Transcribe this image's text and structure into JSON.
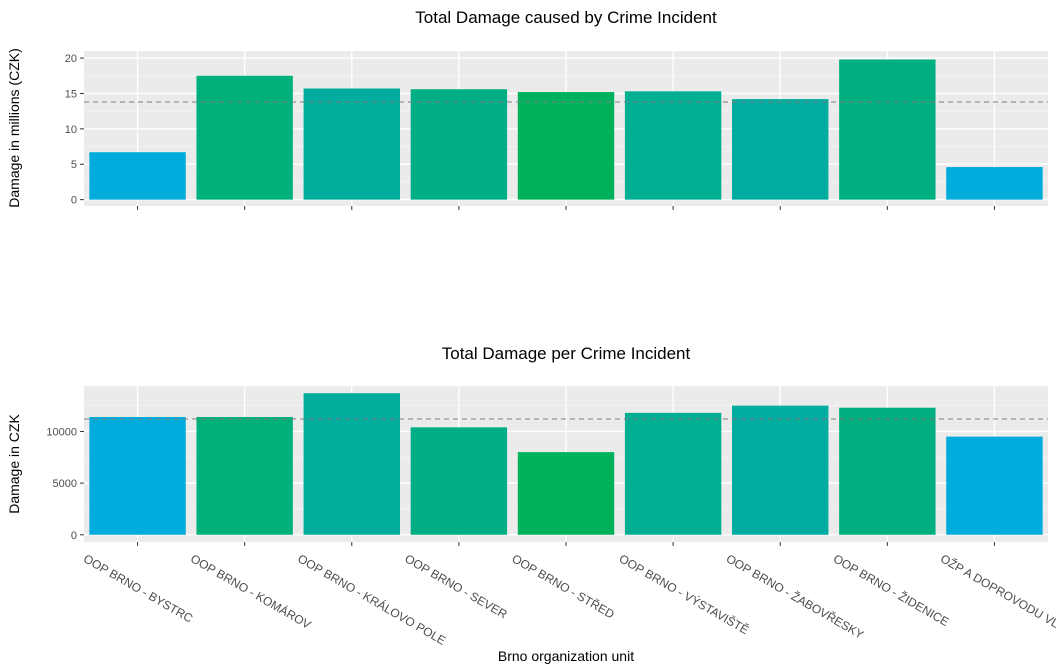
{
  "x_axis_title": "Brno organization unit",
  "chart_data": [
    {
      "type": "bar",
      "title": "Total Damage caused by Crime Incident",
      "xlabel": "",
      "ylabel": "Damage in millions (CZK)",
      "categories": [
        "OOP BRNO - BYSTRC",
        "OOP BRNO - KOMÁROV",
        "OOP BRNO - KRÁLOVO POLE",
        "OOP BRNO - SEVER",
        "OOP BRNO - STŘED",
        "OOP BRNO - VÝSTAVIŠTĚ",
        "OOP BRNO - ŽABOVŘESKY",
        "OOP BRNO - ŽIDENICE",
        "OŽP A DOPROVODU VLAKŮ"
      ],
      "values": [
        6.7,
        17.5,
        15.7,
        15.6,
        15.2,
        15.3,
        14.2,
        19.8,
        4.6
      ],
      "ylim": [
        -0.9,
        21.0
      ],
      "yticks": [
        0,
        5,
        10,
        15,
        20
      ],
      "reference_line": 13.8,
      "grid": true,
      "bar_colors": [
        "#00ACDB",
        "#00B07B",
        "#00AC9B",
        "#00AE85",
        "#00B15C",
        "#00AE92",
        "#00AC9F",
        "#00AF80",
        "#00ACDB"
      ]
    },
    {
      "type": "bar",
      "title": "Total Damage per Crime Incident",
      "xlabel": "Brno organization unit",
      "ylabel": "Damage in CZK",
      "categories": [
        "OOP BRNO - BYSTRC",
        "OOP BRNO - KOMÁROV",
        "OOP BRNO - KRÁLOVO POLE",
        "OOP BRNO - SEVER",
        "OOP BRNO - STŘED",
        "OOP BRNO - VÝSTAVIŠTĚ",
        "OOP BRNO - ŽABOVŘESKY",
        "OOP BRNO - ŽIDENICE",
        "OŽP A DOPROVODU VLAKŮ"
      ],
      "values": [
        11400,
        11400,
        13700,
        10400,
        8000,
        11800,
        12500,
        12300,
        9500
      ],
      "ylim": [
        -700,
        14400
      ],
      "yticks": [
        0,
        5000,
        10000
      ],
      "reference_line": 11200,
      "grid": true,
      "bar_colors": [
        "#00ACDB",
        "#00B07B",
        "#00AC9B",
        "#00AE85",
        "#00B15C",
        "#00AE92",
        "#00AC9F",
        "#00AF80",
        "#00ACDB"
      ]
    }
  ]
}
